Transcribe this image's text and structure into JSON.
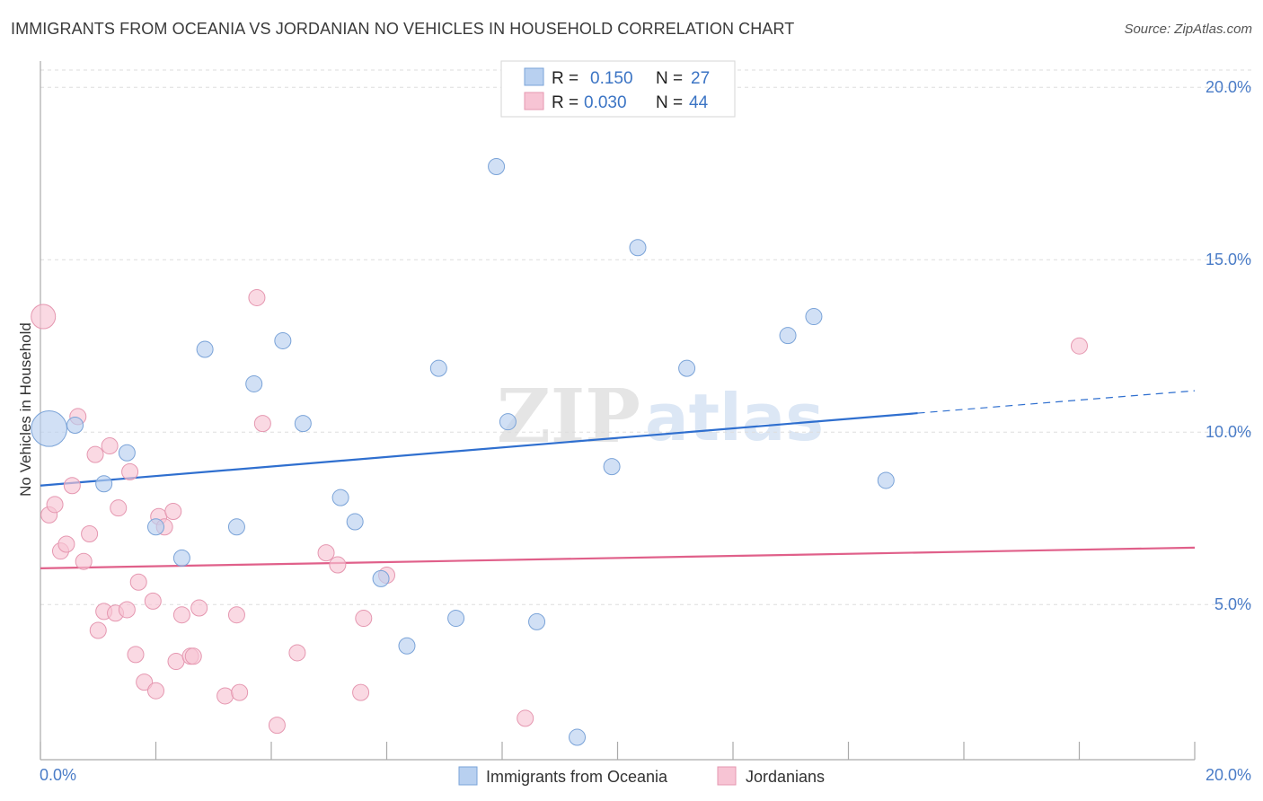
{
  "title": "IMMIGRANTS FROM OCEANIA VS JORDANIAN NO VEHICLES IN HOUSEHOLD CORRELATION CHART",
  "source": "Source: ZipAtlas.com",
  "watermark": {
    "zip": "ZIP",
    "atlas": "atlas"
  },
  "legend": {
    "rows": [
      {
        "r_label": "R =",
        "r_value": "0.150",
        "n_label": "N =",
        "n_value": "27"
      },
      {
        "r_label": "R =",
        "r_value": "0.030",
        "n_label": "N =",
        "n_value": "44"
      }
    ]
  },
  "bottom_legend": [
    "Immigrants from Oceania",
    "Jordanians"
  ],
  "colors": {
    "blue_fill": "#b8d0f0",
    "blue_stroke": "#7aa3d8",
    "blue_line": "#2f6fcf",
    "pink_fill": "#f7c4d4",
    "pink_stroke": "#e597b0",
    "pink_line": "#e0608a",
    "tick_text": "#4a7cc7",
    "grid": "#dddddd"
  },
  "chart_data": {
    "type": "scatter",
    "title": "IMMIGRANTS FROM OCEANIA VS JORDANIAN NO VEHICLES IN HOUSEHOLD CORRELATION CHART",
    "xlabel": "",
    "ylabel": "No Vehicles in Household",
    "xlim": [
      0,
      20
    ],
    "ylim": [
      0.5,
      20.5
    ],
    "x_tick_labels": [
      "0.0%",
      "20.0%"
    ],
    "y_ticks": [
      5,
      10,
      15,
      20
    ],
    "y_tick_labels": [
      "5.0%",
      "10.0%",
      "15.0%",
      "20.0%"
    ],
    "grid": true,
    "legend_position": "top-center",
    "series": [
      {
        "name": "Immigrants from Oceania",
        "r": 0.15,
        "n": 27,
        "trend": {
          "x0": 0,
          "y0": 8.45,
          "x1": 15.2,
          "y1": 10.55,
          "dash_x_end": 20,
          "dash_y_end": 11.2
        },
        "points": [
          [
            0.15,
            10.1,
            2.2
          ],
          [
            0.6,
            10.2,
            1
          ],
          [
            1.1,
            8.5,
            1
          ],
          [
            1.5,
            9.4,
            1
          ],
          [
            2.0,
            7.25,
            1
          ],
          [
            2.45,
            6.35,
            1
          ],
          [
            2.85,
            12.4,
            1
          ],
          [
            3.4,
            7.25,
            1
          ],
          [
            3.7,
            11.4,
            1
          ],
          [
            4.2,
            12.65,
            1
          ],
          [
            4.55,
            10.25,
            1
          ],
          [
            5.2,
            8.1,
            1
          ],
          [
            5.45,
            7.4,
            1
          ],
          [
            5.9,
            5.75,
            1
          ],
          [
            6.35,
            3.8,
            1
          ],
          [
            6.9,
            11.85,
            1
          ],
          [
            7.2,
            4.6,
            1
          ],
          [
            7.9,
            17.7,
            1
          ],
          [
            8.1,
            10.3,
            1
          ],
          [
            8.6,
            4.5,
            1
          ],
          [
            9.3,
            1.15,
            1
          ],
          [
            9.9,
            9.0,
            1
          ],
          [
            10.35,
            15.35,
            1
          ],
          [
            11.2,
            11.85,
            1
          ],
          [
            12.95,
            12.8,
            1
          ],
          [
            13.4,
            13.35,
            1
          ],
          [
            14.65,
            8.6,
            1
          ]
        ]
      },
      {
        "name": "Jordanians",
        "r": 0.03,
        "n": 44,
        "trend": {
          "x0": 0,
          "y0": 6.05,
          "x1": 20,
          "y1": 6.65
        },
        "points": [
          [
            0.05,
            13.35,
            1.5
          ],
          [
            0.15,
            7.6,
            1
          ],
          [
            0.25,
            7.9,
            1
          ],
          [
            0.35,
            6.55,
            1
          ],
          [
            0.45,
            6.75,
            1
          ],
          [
            0.55,
            8.45,
            1
          ],
          [
            0.65,
            10.45,
            1
          ],
          [
            0.75,
            6.25,
            1
          ],
          [
            0.85,
            7.05,
            1
          ],
          [
            0.95,
            9.35,
            1
          ],
          [
            1.0,
            4.25,
            1
          ],
          [
            1.1,
            4.8,
            1
          ],
          [
            1.2,
            9.6,
            1
          ],
          [
            1.3,
            4.75,
            1
          ],
          [
            1.35,
            7.8,
            1
          ],
          [
            1.5,
            4.85,
            1
          ],
          [
            1.55,
            8.85,
            1
          ],
          [
            1.65,
            3.55,
            1
          ],
          [
            1.7,
            5.65,
            1
          ],
          [
            1.8,
            2.75,
            1
          ],
          [
            1.95,
            5.1,
            1
          ],
          [
            2.0,
            2.5,
            1
          ],
          [
            2.05,
            7.55,
            1
          ],
          [
            2.15,
            7.25,
            1
          ],
          [
            2.3,
            7.7,
            1
          ],
          [
            2.35,
            3.35,
            1
          ],
          [
            2.45,
            4.7,
            1
          ],
          [
            2.6,
            3.5,
            1
          ],
          [
            2.65,
            3.5,
            1
          ],
          [
            2.75,
            4.9,
            1
          ],
          [
            3.2,
            2.35,
            1
          ],
          [
            3.4,
            4.7,
            1
          ],
          [
            3.45,
            2.45,
            1
          ],
          [
            3.75,
            13.9,
            1
          ],
          [
            3.85,
            10.25,
            1
          ],
          [
            4.1,
            1.5,
            1
          ],
          [
            4.45,
            3.6,
            1
          ],
          [
            4.95,
            6.5,
            1
          ],
          [
            5.15,
            6.15,
            1
          ],
          [
            5.55,
            2.45,
            1
          ],
          [
            5.6,
            4.6,
            1
          ],
          [
            6.0,
            5.85,
            1
          ],
          [
            8.4,
            1.7,
            1
          ],
          [
            18.0,
            12.5,
            1
          ]
        ]
      }
    ]
  }
}
